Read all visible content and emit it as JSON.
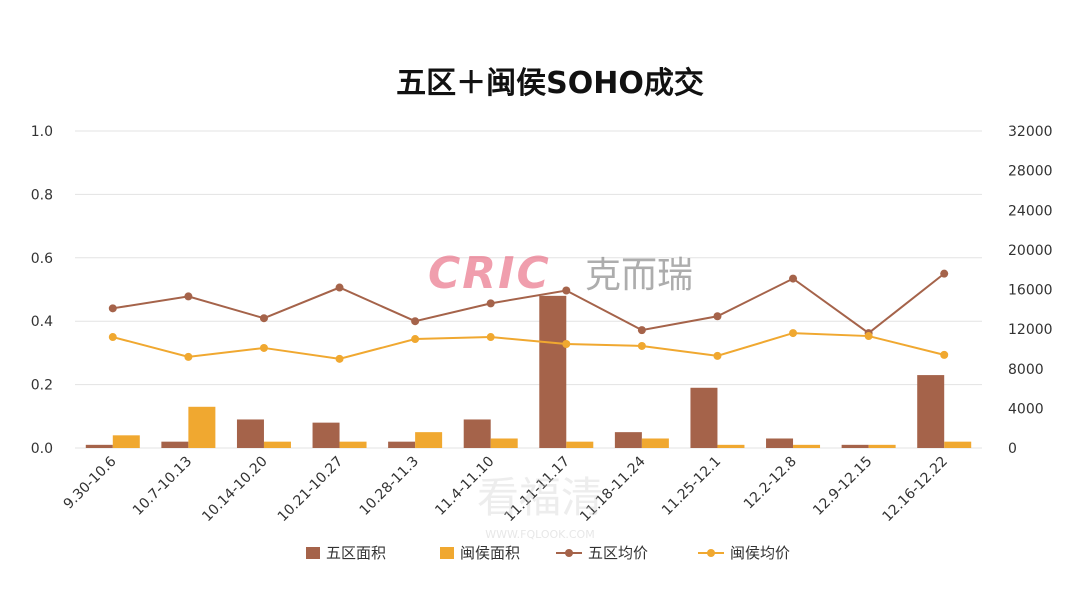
{
  "chart_data": {
    "type": "bar",
    "title": "五区＋闽侯SOHO成交",
    "categories": [
      "9.30-10.6",
      "10.7-10.13",
      "10.14-10.20",
      "10.21-10.27",
      "10.28-11.3",
      "11.4-11.10",
      "11.11-11.17",
      "11.18-11.24",
      "11.25-12.1",
      "12.2-12.8",
      "12.9-12.15",
      "12.16-12.22"
    ],
    "y_left": {
      "ylim": [
        0,
        1.0
      ],
      "ticks": [
        "0.0",
        "0.2",
        "0.4",
        "0.6",
        "0.8",
        "1.0"
      ]
    },
    "y_right": {
      "ylim": [
        0,
        32000
      ],
      "ticks": [
        "0",
        "4000",
        "8000",
        "12000",
        "16000",
        "20000",
        "24000",
        "28000",
        "32000"
      ]
    },
    "grid": true,
    "legend_position": "bottom",
    "series": [
      {
        "name": "五区面积",
        "kind": "bar",
        "axis": "left",
        "color": "#a5634a",
        "values": [
          0.01,
          0.02,
          0.09,
          0.08,
          0.02,
          0.09,
          0.48,
          0.05,
          0.19,
          0.03,
          0.01,
          0.23
        ]
      },
      {
        "name": "闽侯面积",
        "kind": "bar",
        "axis": "left",
        "color": "#f0a830",
        "values": [
          0.04,
          0.13,
          0.02,
          0.02,
          0.05,
          0.03,
          0.02,
          0.03,
          0.01,
          0.01,
          0.01,
          0.02
        ]
      },
      {
        "name": "五区均价",
        "kind": "line",
        "axis": "right",
        "color": "#a5634a",
        "values": [
          14100,
          15300,
          13100,
          16200,
          12800,
          14600,
          15900,
          11900,
          13300,
          17100,
          11600,
          17600
        ]
      },
      {
        "name": "闽侯均价",
        "kind": "line",
        "axis": "right",
        "color": "#f0a830",
        "values": [
          11200,
          9200,
          10100,
          9000,
          11000,
          11200,
          10500,
          10300,
          9300,
          11600,
          11300,
          9400
        ]
      }
    ]
  },
  "watermarks": {
    "brand_latin": "CRIC",
    "brand_cn": "克而瑞",
    "site_cn": "看福清",
    "site_url": "WWW.FQLOOK.COM"
  }
}
